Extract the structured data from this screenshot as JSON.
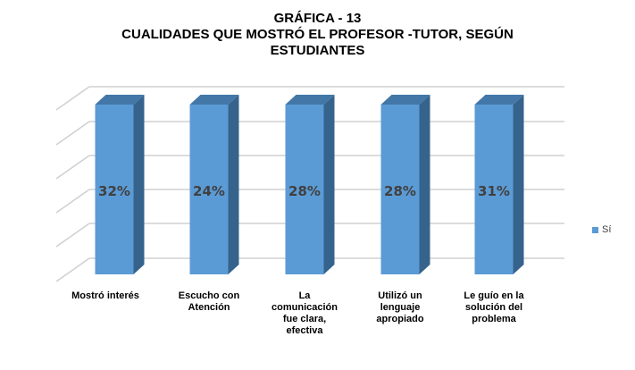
{
  "chart_data": {
    "type": "bar",
    "style": "3d-column, 100% stacked (single series fills full height)",
    "title_lines": [
      "GRÁFICA - 13",
      "CUALIDADES QUE MOSTRÓ EL PROFESOR -TUTOR, SEGÚN",
      "ESTUDIANTES"
    ],
    "categories": [
      [
        "Mostró interés"
      ],
      [
        "Escucho con",
        "Atención"
      ],
      [
        "La",
        "comunicación",
        "fue clara,",
        "efectiva"
      ],
      [
        "Utilizó  un",
        "lenguaje",
        "apropiado"
      ],
      [
        "Le guío en la",
        "solución del",
        "problema"
      ]
    ],
    "series": [
      {
        "name": "Sí",
        "values": [
          32,
          24,
          28,
          28,
          31
        ],
        "labels": [
          "32%",
          "24%",
          "28%",
          "28%",
          "31%"
        ],
        "color": "#5b9bd5"
      }
    ],
    "grid": true,
    "legend": "right",
    "colors": {
      "front": "#5b9bd5",
      "side": "#35638c",
      "top": "#4277a8",
      "grid": "#d0d0d0"
    }
  }
}
